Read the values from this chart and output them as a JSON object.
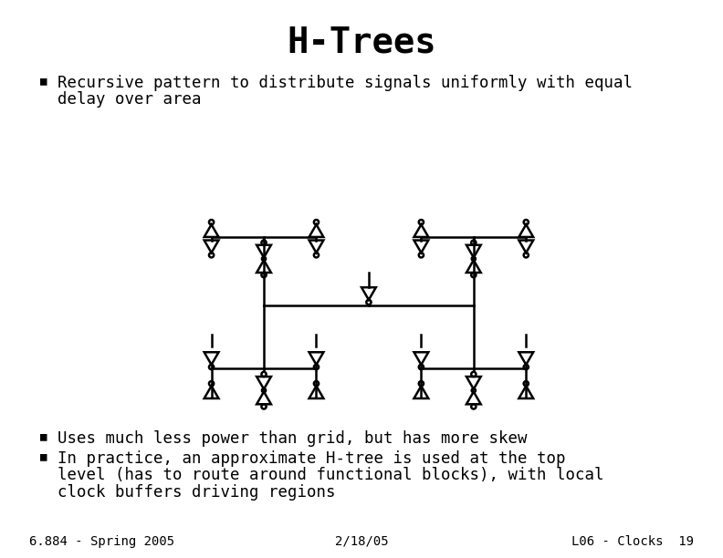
{
  "title": "H-Trees",
  "title_fontsize": 28,
  "title_font": "monospace",
  "bullet1_line1": "  Recursive pattern to distribute signals uniformly with equal",
  "bullet1_line2": "  delay over area",
  "bullet2": "  Uses much less power than grid, but has more skew",
  "bullet3_line1": "  In practice, an approximate H-tree is used at the top",
  "bullet3_line2": "  level (has to route around functional blocks), with local",
  "bullet3_line3": "  clock buffers driving regions",
  "footer_left": "6.884 - Spring 2005",
  "footer_center": "2/18/05",
  "footer_right": "L06 - Clocks  19",
  "text_color": "#000000",
  "bg_color": "#ffffff",
  "body_fontsize": 12.5,
  "footer_fontsize": 10
}
